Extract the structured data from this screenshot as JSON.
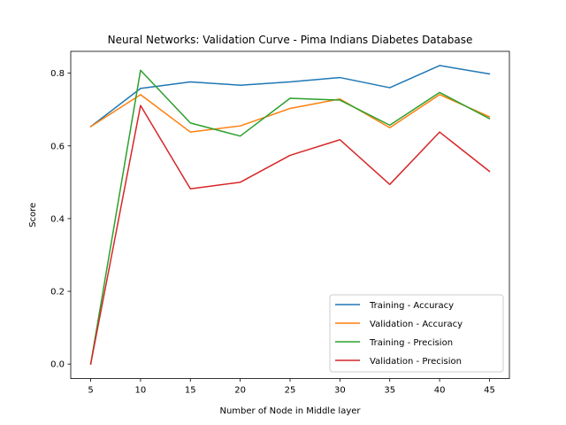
{
  "chart_data": {
    "type": "line",
    "title": "Neural Networks: Validation Curve - Pima Indians Diabetes Database",
    "xlabel": "Number of Node in Middle layer",
    "ylabel": "Score",
    "x": [
      5,
      10,
      15,
      20,
      25,
      30,
      35,
      40,
      45
    ],
    "xticks": [
      "5",
      "10",
      "15",
      "20",
      "25",
      "30",
      "35",
      "40",
      "45"
    ],
    "yticks": [
      "0.0",
      "0.2",
      "0.4",
      "0.6",
      "0.8"
    ],
    "ytick_values": [
      0.0,
      0.2,
      0.4,
      0.6,
      0.8
    ],
    "xlim": [
      3,
      47
    ],
    "ylim": [
      -0.04,
      0.86
    ],
    "grid": false,
    "legend_position": "lower-right",
    "series": [
      {
        "name": "Training - Accuracy",
        "color": "#1f77b4",
        "values": [
          0.653,
          0.758,
          0.776,
          0.767,
          0.776,
          0.788,
          0.76,
          0.821,
          0.798
        ]
      },
      {
        "name": "Validation - Accuracy",
        "color": "#ff7f0e",
        "values": [
          0.653,
          0.741,
          0.638,
          0.655,
          0.703,
          0.729,
          0.65,
          0.741,
          0.68
        ]
      },
      {
        "name": "Training - Precision",
        "color": "#2ca02c",
        "values": [
          0.0,
          0.808,
          0.663,
          0.627,
          0.731,
          0.726,
          0.657,
          0.747,
          0.675
        ]
      },
      {
        "name": "Validation - Precision",
        "color": "#d62728",
        "values": [
          0.0,
          0.711,
          0.482,
          0.5,
          0.574,
          0.617,
          0.494,
          0.638,
          0.53
        ]
      }
    ]
  }
}
